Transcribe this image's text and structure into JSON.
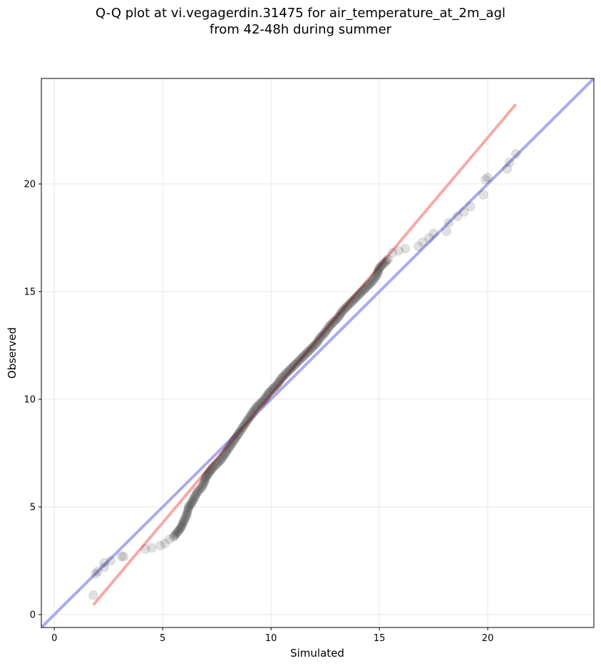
{
  "chart_data": {
    "type": "scatter",
    "title": "Q-Q plot at vi.vegagerdin.31475 for air_temperature_at_2m_agl",
    "subtitle": "from 42-48h during summer",
    "xlabel": "Simulated",
    "ylabel": "Observed",
    "xlim": [
      -0.6,
      24.9
    ],
    "ylim": [
      -0.6,
      24.9
    ],
    "xticks": [
      0,
      5,
      10,
      15,
      20
    ],
    "yticks": [
      0,
      5,
      10,
      15,
      20
    ],
    "grid": true,
    "identity_line": {
      "color": "#aaaaf0",
      "from": [
        -0.6,
        -0.6
      ],
      "to": [
        24.9,
        24.9
      ]
    },
    "fit_line": {
      "color": "#f5a9a9",
      "from": [
        1.8,
        0.45
      ],
      "to": [
        21.3,
        23.7
      ]
    },
    "points": [
      [
        1.8,
        0.9
      ],
      [
        1.9,
        1.9
      ],
      [
        2.0,
        2.0
      ],
      [
        2.3,
        2.2
      ],
      [
        2.3,
        2.4
      ],
      [
        2.6,
        2.5
      ],
      [
        3.1,
        2.7
      ],
      [
        3.2,
        2.7
      ],
      [
        4.2,
        3.05
      ],
      [
        4.5,
        3.1
      ],
      [
        4.9,
        3.2
      ],
      [
        5.1,
        3.3
      ],
      [
        5.3,
        3.5
      ],
      [
        5.5,
        3.6
      ],
      [
        5.7,
        3.85
      ],
      [
        5.85,
        4.05
      ],
      [
        6.0,
        4.4
      ],
      [
        6.1,
        4.6
      ],
      [
        6.2,
        5.0
      ],
      [
        6.35,
        5.2
      ],
      [
        6.5,
        5.5
      ],
      [
        6.6,
        5.7
      ],
      [
        6.8,
        5.9
      ],
      [
        6.9,
        6.1
      ],
      [
        7.0,
        6.4
      ],
      [
        7.15,
        6.6
      ],
      [
        7.3,
        6.8
      ],
      [
        7.5,
        7.0
      ],
      [
        7.7,
        7.2
      ],
      [
        7.9,
        7.5
      ],
      [
        8.1,
        7.8
      ],
      [
        8.3,
        8.1
      ],
      [
        8.5,
        8.4
      ],
      [
        8.7,
        8.7
      ],
      [
        8.9,
        9.0
      ],
      [
        9.1,
        9.3
      ],
      [
        9.3,
        9.6
      ],
      [
        9.5,
        9.8
      ],
      [
        9.7,
        10.0
      ],
      [
        9.9,
        10.3
      ],
      [
        10.1,
        10.5
      ],
      [
        10.3,
        10.7
      ],
      [
        10.5,
        11.0
      ],
      [
        10.7,
        11.2
      ],
      [
        10.9,
        11.4
      ],
      [
        11.1,
        11.6
      ],
      [
        11.3,
        11.8
      ],
      [
        11.5,
        12.0
      ],
      [
        11.7,
        12.2
      ],
      [
        11.9,
        12.4
      ],
      [
        12.1,
        12.6
      ],
      [
        12.3,
        12.9
      ],
      [
        12.5,
        13.1
      ],
      [
        12.7,
        13.4
      ],
      [
        12.9,
        13.6
      ],
      [
        13.1,
        13.8
      ],
      [
        13.3,
        14.1
      ],
      [
        13.5,
        14.3
      ],
      [
        13.7,
        14.5
      ],
      [
        13.9,
        14.7
      ],
      [
        14.1,
        14.9
      ],
      [
        14.3,
        15.1
      ],
      [
        14.5,
        15.3
      ],
      [
        14.7,
        15.5
      ],
      [
        14.9,
        15.8
      ],
      [
        15.0,
        16.1
      ],
      [
        15.2,
        16.3
      ],
      [
        15.4,
        16.5
      ],
      [
        15.6,
        16.8
      ],
      [
        15.9,
        16.9
      ],
      [
        16.2,
        17.0
      ],
      [
        16.8,
        17.1
      ],
      [
        17.0,
        17.3
      ],
      [
        17.3,
        17.5
      ],
      [
        17.5,
        17.7
      ],
      [
        18.1,
        17.8
      ],
      [
        18.2,
        18.2
      ],
      [
        18.6,
        18.5
      ],
      [
        18.9,
        18.7
      ],
      [
        19.2,
        18.95
      ],
      [
        19.8,
        19.5
      ],
      [
        19.9,
        20.2
      ],
      [
        20.0,
        20.3
      ],
      [
        20.9,
        20.7
      ],
      [
        21.0,
        21.0
      ],
      [
        21.3,
        21.4
      ]
    ]
  }
}
